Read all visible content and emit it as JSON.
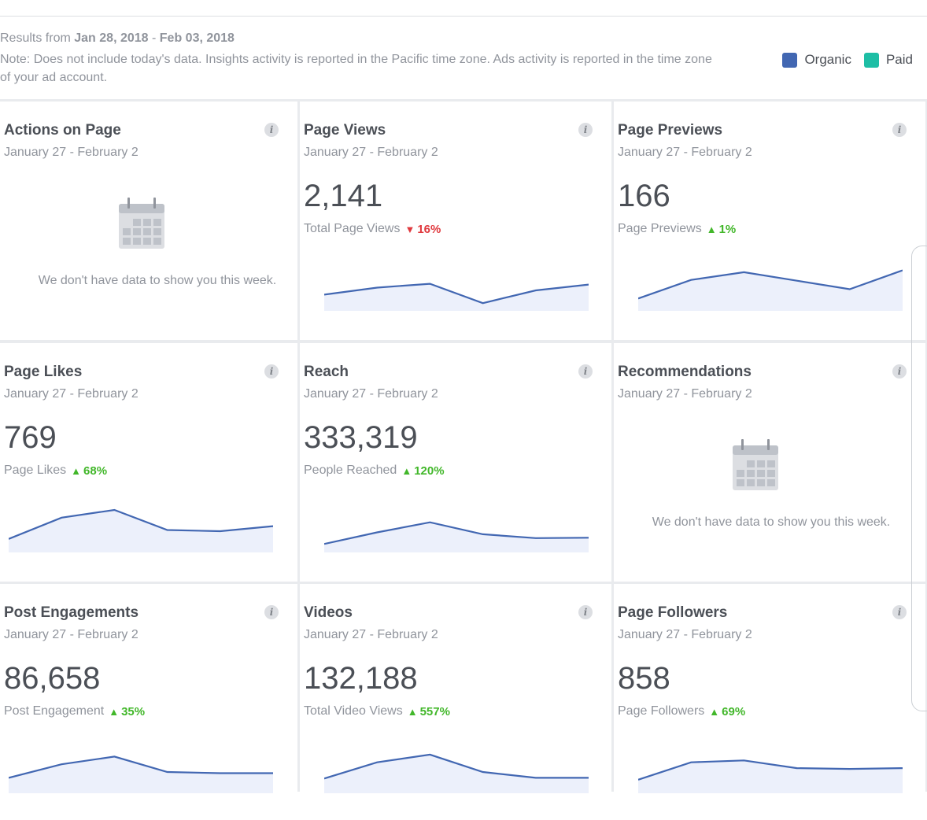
{
  "header": {
    "results_prefix": "Results from",
    "date_start": "Jan 28, 2018",
    "date_sep": "-",
    "date_end": "Feb 03, 2018",
    "note": "Note: Does not include today's data. Insights activity is reported in the Pacific time zone. Ads activity is reported in the time zone of your ad account."
  },
  "legend": {
    "organic_label": "Organic",
    "organic_color": "#4267b2",
    "paid_label": "Paid",
    "paid_color": "#1ebea5"
  },
  "nodata_message": "We don't have data to show you this week.",
  "cards": [
    {
      "title": "Actions on Page",
      "date": "January 27 - February 2",
      "nodata": true
    },
    {
      "title": "Page Views",
      "date": "January 27 - February 2",
      "value": "2,141",
      "metric_label": "Total Page Views",
      "delta": "16%",
      "direction": "down",
      "trend": [
        0.42,
        0.6,
        0.7,
        0.2,
        0.53,
        0.68
      ]
    },
    {
      "title": "Page Previews",
      "date": "January 27 - February 2",
      "value": "166",
      "metric_label": "Page Previews",
      "delta": "1%",
      "direction": "up",
      "trend": [
        0.32,
        0.8,
        1.0,
        0.78,
        0.56,
        1.05
      ]
    },
    {
      "title": "Page Likes",
      "date": "January 27 - February 2",
      "value": "769",
      "metric_label": "Page Likes",
      "delta": "68%",
      "direction": "up",
      "trend": [
        0.35,
        0.9,
        1.1,
        0.58,
        0.55,
        0.68
      ]
    },
    {
      "title": "Reach",
      "date": "January 27 - February 2",
      "value": "333,319",
      "metric_label": "People Reached",
      "delta": "120%",
      "direction": "up",
      "trend": [
        0.22,
        0.52,
        0.78,
        0.47,
        0.37,
        0.38
      ]
    },
    {
      "title": "Recommendations",
      "date": "January 27 - February 2",
      "nodata": true
    },
    {
      "title": "Post Engagements",
      "date": "January 27 - February 2",
      "value": "86,658",
      "metric_label": "Post Engagement",
      "delta": "35%",
      "direction": "up",
      "trend": [
        0.4,
        0.75,
        0.95,
        0.55,
        0.52,
        0.52
      ]
    },
    {
      "title": "Videos",
      "date": "January 27 - February 2",
      "value": "132,188",
      "metric_label": "Total Video Views",
      "delta": "557%",
      "direction": "up",
      "trend": [
        0.38,
        0.8,
        1.0,
        0.55,
        0.4,
        0.4
      ]
    },
    {
      "title": "Page Followers",
      "date": "January 27 - February 2",
      "value": "858",
      "metric_label": "Page Followers",
      "delta": "69%",
      "direction": "up",
      "trend": [
        0.35,
        0.8,
        0.85,
        0.65,
        0.63,
        0.65
      ]
    }
  ]
}
